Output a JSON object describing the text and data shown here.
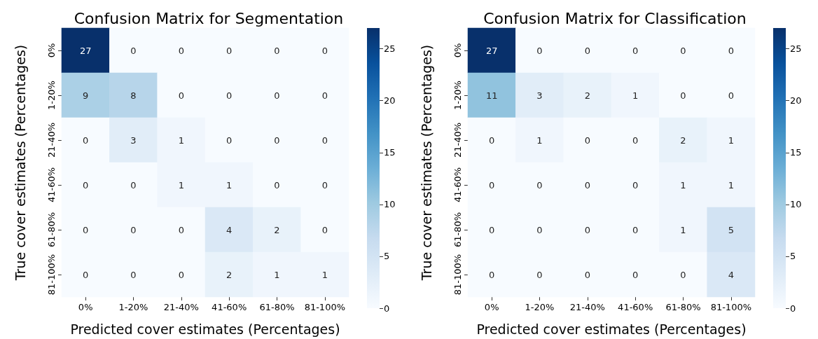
{
  "chart_data": [
    {
      "type": "heatmap",
      "title": "Confusion Matrix for Segmentation",
      "xlabel": "Predicted cover estimates (Percentages)",
      "ylabel": "True cover estimates (Percentages)",
      "categories": [
        "0%",
        "1-20%",
        "21-40%",
        "41-60%",
        "61-80%",
        "81-100%"
      ],
      "y_categories": [
        "0%",
        "1-20%",
        "21-40%",
        "41-60%",
        "61-80%",
        "81-100%"
      ],
      "cells": [
        [
          27,
          0,
          0,
          0,
          0,
          0
        ],
        [
          9,
          8,
          0,
          0,
          0,
          0
        ],
        [
          0,
          3,
          1,
          0,
          0,
          0
        ],
        [
          0,
          0,
          1,
          1,
          0,
          0
        ],
        [
          0,
          0,
          0,
          4,
          2,
          0
        ],
        [
          0,
          0,
          0,
          2,
          1,
          1
        ]
      ],
      "clim": [
        0,
        27
      ],
      "cticks": [
        0,
        5,
        10,
        15,
        20,
        25
      ],
      "data_labels": true
    },
    {
      "type": "heatmap",
      "title": "Confusion Matrix for Classification",
      "xlabel": "Predicted cover estimates (Percentages)",
      "ylabel": "True cover estimates (Percentages)",
      "categories": [
        "0%",
        "1-20%",
        "21-40%",
        "41-60%",
        "61-80%",
        "81-100%"
      ],
      "y_categories": [
        "0%",
        "1-20%",
        "21-40%",
        "41-60%",
        "61-80%",
        "81-100%"
      ],
      "cells": [
        [
          27,
          0,
          0,
          0,
          0,
          0
        ],
        [
          11,
          3,
          2,
          1,
          0,
          0
        ],
        [
          0,
          1,
          0,
          0,
          2,
          1
        ],
        [
          0,
          0,
          0,
          0,
          1,
          1
        ],
        [
          0,
          0,
          0,
          0,
          1,
          5
        ],
        [
          0,
          0,
          0,
          0,
          0,
          4
        ]
      ],
      "clim": [
        0,
        27
      ],
      "cticks": [
        0,
        5,
        10,
        15,
        20,
        25
      ],
      "data_labels": true
    }
  ]
}
